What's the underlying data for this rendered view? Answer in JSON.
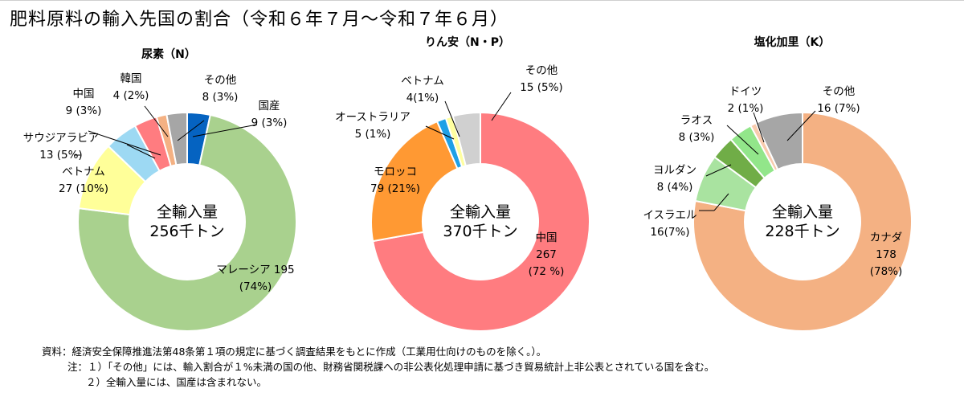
{
  "title": "肥料原料の輸入先国の割合（令和６年７月～令和７年６月）",
  "colors": {
    "malaysia": "#a9d18e",
    "vietnam": "#ffff99",
    "saudi": "#9dd9f3",
    "china_urea": "#ff7c80",
    "korea": "#f4b183",
    "other_urea": "#a6a6a6",
    "domestic": "#0563c1",
    "china_p": "#ff7c80",
    "morocco": "#ff9933",
    "australia": "#1ea0e6",
    "vietnam_p": "#ffffa0",
    "other_p": "#d0d0d0",
    "canada": "#f4b183",
    "israel": "#a9e3a0",
    "jordan": "#70ad47",
    "laos": "#92e68a",
    "germany": "#f8cbad",
    "other_k": "#a6a6a6"
  },
  "chart_data": [
    {
      "type": "pie",
      "title": "尿素（N）",
      "center_label": [
        "全輸入量",
        "256千トン"
      ],
      "slices": [
        {
          "name": "国産",
          "value": 9,
          "pct": 3,
          "color": "#0563c1",
          "label": [
            "国産",
            "9 (3%)"
          ]
        },
        {
          "name": "マレーシア",
          "value": 195,
          "pct": 74,
          "color": "#a9d18e",
          "label": [
            "マレーシア 195",
            "(74%)"
          ]
        },
        {
          "name": "ベトナム",
          "value": 27,
          "pct": 10,
          "color": "#ffff99",
          "label": [
            "ベトナム",
            "27 (10%)"
          ]
        },
        {
          "name": "サウジアラビア",
          "value": 13,
          "pct": 5,
          "color": "#9dd9f3",
          "label": [
            "サウジアラビア",
            "13 (5%)"
          ]
        },
        {
          "name": "中国",
          "value": 9,
          "pct": 3,
          "color": "#ff7c80",
          "label": [
            "中国",
            "9 (3%)"
          ]
        },
        {
          "name": "韓国",
          "value": 4,
          "pct": 2,
          "color": "#f4b183",
          "label": [
            "韓国",
            "4 (2%)"
          ]
        },
        {
          "name": "その他",
          "value": 8,
          "pct": 3,
          "color": "#a6a6a6",
          "label": [
            "その他",
            "8 (3%)"
          ]
        }
      ]
    },
    {
      "type": "pie",
      "title": "りん安（N・P）",
      "center_label": [
        "全輸入量",
        "370千トン"
      ],
      "slices": [
        {
          "name": "中国",
          "value": 267,
          "pct": 72,
          "color": "#ff7c80",
          "label": [
            "中国",
            "267",
            "(72 %)"
          ]
        },
        {
          "name": "モロッコ",
          "value": 79,
          "pct": 21,
          "color": "#ff9933",
          "label": [
            "モロッコ",
            "79 (21%)"
          ]
        },
        {
          "name": "オーストラリア",
          "value": 5,
          "pct": 1,
          "color": "#1ea0e6",
          "label": [
            "オーストラリア",
            "5 (1%)"
          ]
        },
        {
          "name": "ベトナム",
          "value": 4,
          "pct": 1,
          "color": "#ffffa0",
          "label": [
            "ベトナム",
            "4(1%)"
          ]
        },
        {
          "name": "その他",
          "value": 15,
          "pct": 5,
          "color": "#d0d0d0",
          "label": [
            "その他",
            "15 (5%)"
          ]
        }
      ]
    },
    {
      "type": "pie",
      "title": "塩化加里（K）",
      "center_label": [
        "全輸入量",
        "228千トン"
      ],
      "slices": [
        {
          "name": "カナダ",
          "value": 178,
          "pct": 78,
          "color": "#f4b183",
          "label": [
            "カナダ",
            "178",
            "(78%)"
          ]
        },
        {
          "name": "イスラエル",
          "value": 16,
          "pct": 7,
          "color": "#a9e3a0",
          "label": [
            "イスラエル",
            "16(7%)"
          ]
        },
        {
          "name": "ヨルダン",
          "value": 8,
          "pct": 4,
          "color": "#70ad47",
          "label": [
            "ヨルダン",
            "8 (4%)"
          ]
        },
        {
          "name": "ラオス",
          "value": 8,
          "pct": 3,
          "color": "#92e68a",
          "label": [
            "ラオス",
            "8 (3%)"
          ]
        },
        {
          "name": "ドイツ",
          "value": 2,
          "pct": 1,
          "color": "#f8cbad",
          "label": [
            "ドイツ",
            "2 (1%)"
          ]
        },
        {
          "name": "その他",
          "value": 16,
          "pct": 7,
          "color": "#a6a6a6",
          "label": [
            "その他",
            "16 (7%)"
          ]
        }
      ]
    }
  ],
  "notes": {
    "source": "資料：経済安全保障推進法第48条第１項の規定に基づく調査結果をもとに作成（工業用仕向けのものを除く。）。",
    "note1": "注：１）「その他」には、輸入割合が１%未満の国の他、財務省関税課への非公表化処理申請に基づき貿易統計上非公表とされている国を含む。",
    "note2": "２）全輸入量には、国産は含まれない。"
  }
}
